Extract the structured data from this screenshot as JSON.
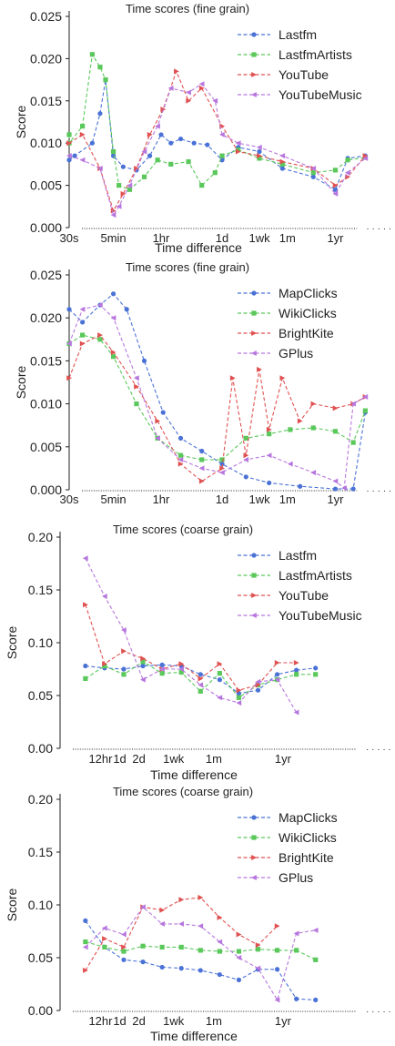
{
  "chart_data": [
    {
      "type": "line",
      "title": "Time scores (fine grain)",
      "xlabel": "Time difference",
      "ylabel": "Score",
      "ylim": [
        0,
        0.025
      ],
      "yticks": [
        "0.000",
        "0.005",
        "0.010",
        "0.015",
        "0.020",
        "0.025"
      ],
      "xscale": "log",
      "xticks": [
        {
          "x": 30,
          "label": "30s"
        },
        {
          "x": 300,
          "label": "5min"
        },
        {
          "x": 3600,
          "label": "1hr"
        },
        {
          "x": 86400,
          "label": "1d"
        },
        {
          "x": 604800,
          "label": "1wk"
        },
        {
          "x": 2592000,
          "label": "1m"
        },
        {
          "x": 31536000,
          "label": "1yr"
        }
      ],
      "xlim": [
        30,
        300000000
      ],
      "legend": "top-right",
      "series": [
        {
          "name": "Lastfm",
          "color": "#4a72d6",
          "marker": "circle",
          "x": [
            20,
            40,
            100,
            150,
            200,
            300,
            500,
            1000,
            2000,
            3600,
            6000,
            10000,
            20000,
            40000,
            86400,
            200000,
            600000,
            2000000,
            10000000,
            31536000,
            60000000,
            150000000
          ],
          "y": [
            0.008,
            0.0085,
            0.01,
            0.0135,
            0.0175,
            0.0085,
            0.0072,
            0.0068,
            0.0085,
            0.011,
            0.01,
            0.0105,
            0.01,
            0.0098,
            0.008,
            0.0095,
            0.009,
            0.007,
            0.006,
            0.0045,
            0.0082,
            0.0085
          ]
        },
        {
          "name": "LastfmArtists",
          "color": "#5ac85a",
          "marker": "square",
          "x": [
            20,
            30,
            60,
            100,
            150,
            200,
            300,
            400,
            700,
            1500,
            3000,
            6000,
            15000,
            30000,
            60000,
            86400,
            200000,
            600000,
            2000000,
            10000000,
            31536000,
            60000000,
            150000000
          ],
          "y": [
            0.011,
            0.01,
            0.012,
            0.0205,
            0.019,
            0.0175,
            0.009,
            0.005,
            0.0045,
            0.006,
            0.008,
            0.0075,
            0.0078,
            0.005,
            0.0065,
            0.0085,
            0.0092,
            0.0082,
            0.0075,
            0.0065,
            0.0068,
            0.008,
            0.0083
          ]
        },
        {
          "name": "YouTube",
          "color": "#e05050",
          "marker": "tri-right",
          "x": [
            20,
            60,
            150,
            300,
            500,
            1000,
            2000,
            4000,
            8000,
            15000,
            30000,
            86400,
            200000,
            600000,
            2000000,
            10000000,
            31536000,
            60000000,
            150000000
          ],
          "y": [
            0.01,
            0.011,
            0.007,
            0.002,
            0.004,
            0.007,
            0.011,
            0.014,
            0.0185,
            0.015,
            0.0165,
            0.012,
            0.009,
            0.0085,
            0.0078,
            0.007,
            0.005,
            0.006,
            0.0085
          ]
        },
        {
          "name": "YouTubeMusic",
          "color": "#b776de",
          "marker": "tri-left",
          "x": [
            20,
            60,
            150,
            300,
            400,
            700,
            1500,
            3000,
            6000,
            15000,
            30000,
            60000,
            86400,
            200000,
            600000,
            2000000,
            10000000,
            31536000,
            60000000,
            150000000
          ],
          "y": [
            0.0085,
            0.008,
            0.007,
            0.0015,
            0.0025,
            0.005,
            0.009,
            0.012,
            0.0165,
            0.016,
            0.017,
            0.015,
            0.011,
            0.01,
            0.0095,
            0.0085,
            0.007,
            0.004,
            0.0065,
            0.0082
          ]
        }
      ]
    },
    {
      "type": "line",
      "title": "Time scores (fine grain)",
      "xlabel": "",
      "ylabel": "Score",
      "ylim": [
        0,
        0.025
      ],
      "yticks": [
        "0.000",
        "0.005",
        "0.010",
        "0.015",
        "0.020",
        "0.025"
      ],
      "xscale": "log",
      "xticks": [
        {
          "x": 30,
          "label": "30s"
        },
        {
          "x": 300,
          "label": "5min"
        },
        {
          "x": 3600,
          "label": "1hr"
        },
        {
          "x": 86400,
          "label": "1d"
        },
        {
          "x": 604800,
          "label": "1wk"
        },
        {
          "x": 2592000,
          "label": "1m"
        },
        {
          "x": 31536000,
          "label": "1yr"
        }
      ],
      "xlim": [
        30,
        300000000
      ],
      "legend": "top-right",
      "series": [
        {
          "name": "MapClicks",
          "color": "#4a72d6",
          "marker": "circle",
          "x": [
            20,
            60,
            150,
            300,
            600,
            1500,
            4000,
            10000,
            30000,
            86400,
            300000,
            1000000,
            5000000,
            31536000,
            80000000,
            150000000
          ],
          "y": [
            0.021,
            0.0195,
            0.0215,
            0.0228,
            0.021,
            0.015,
            0.009,
            0.006,
            0.0045,
            0.003,
            0.0015,
            0.0008,
            0.0004,
            0.0001,
            0.0001,
            0.009
          ]
        },
        {
          "name": "WikiClicks",
          "color": "#5ac85a",
          "marker": "square",
          "x": [
            20,
            60,
            150,
            300,
            1000,
            3000,
            10000,
            30000,
            86400,
            300000,
            1000000,
            3000000,
            10000000,
            31536000,
            80000000,
            150000000
          ],
          "y": [
            0.017,
            0.018,
            0.0175,
            0.0155,
            0.01,
            0.006,
            0.004,
            0.0035,
            0.0035,
            0.006,
            0.0065,
            0.007,
            0.0072,
            0.0068,
            0.0055,
            0.0092
          ]
        },
        {
          "name": "BrightKite",
          "color": "#e05050",
          "marker": "tri-right",
          "x": [
            20,
            60,
            150,
            300,
            1000,
            3000,
            10000,
            30000,
            86400,
            150000,
            300000,
            600000,
            1000000,
            2000000,
            5000000,
            10000000,
            31536000,
            80000000,
            150000000
          ],
          "y": [
            0.013,
            0.017,
            0.018,
            0.016,
            0.012,
            0.008,
            0.003,
            0.001,
            0.0025,
            0.013,
            0.004,
            0.014,
            0.007,
            0.013,
            0.008,
            0.01,
            0.0095,
            0.01,
            0.0108
          ]
        },
        {
          "name": "GPlus",
          "color": "#b776de",
          "marker": "tri-left",
          "x": [
            20,
            60,
            150,
            300,
            1000,
            3000,
            10000,
            30000,
            86400,
            300000,
            1000000,
            3000000,
            10000000,
            31536000,
            50000000,
            80000000,
            150000000
          ],
          "y": [
            0.017,
            0.021,
            0.0215,
            0.02,
            0.013,
            0.006,
            0.0035,
            0.0025,
            0.002,
            0.0035,
            0.004,
            0.003,
            0.002,
            0.001,
            0.0002,
            0.01,
            0.0108
          ]
        }
      ]
    },
    {
      "type": "line",
      "title": "Time scores (coarse grain)",
      "xlabel": "Time difference",
      "ylabel": "Score",
      "ylim": [
        0,
        0.2
      ],
      "yticks": [
        "0.00",
        "0.05",
        "0.10",
        "0.15",
        "0.20"
      ],
      "xscale": "log",
      "xticks": [
        {
          "x": 43200,
          "label": "12hr"
        },
        {
          "x": 86400,
          "label": "1d"
        },
        {
          "x": 172800,
          "label": "2d"
        },
        {
          "x": 604800,
          "label": "1wk"
        },
        {
          "x": 2592000,
          "label": "1m"
        },
        {
          "x": 31536000,
          "label": "1yr"
        }
      ],
      "xlim": [
        10000,
        1000000000
      ],
      "legend": "top-right",
      "series": [
        {
          "name": "Lastfm",
          "color": "#4a72d6",
          "marker": "circle",
          "x": [
            25000,
            50000,
            100000,
            200000,
            400000,
            800000,
            1600000,
            3200000,
            6400000,
            12800000,
            25600000,
            51200000,
            102400000
          ],
          "y": [
            0.078,
            0.076,
            0.075,
            0.078,
            0.079,
            0.078,
            0.07,
            0.065,
            0.052,
            0.055,
            0.07,
            0.074,
            0.076
          ]
        },
        {
          "name": "LastfmArtists",
          "color": "#5ac85a",
          "marker": "square",
          "x": [
            25000,
            50000,
            100000,
            200000,
            400000,
            800000,
            1600000,
            3200000,
            6400000,
            12800000,
            25600000,
            51200000,
            102400000
          ],
          "y": [
            0.066,
            0.078,
            0.07,
            0.082,
            0.071,
            0.072,
            0.054,
            0.071,
            0.048,
            0.06,
            0.065,
            0.07,
            0.07
          ]
        },
        {
          "name": "YouTube",
          "color": "#e05050",
          "marker": "tri-right",
          "x": [
            25000,
            50000,
            100000,
            200000,
            400000,
            800000,
            1600000,
            3200000,
            6400000,
            12800000,
            25600000,
            51200000
          ],
          "y": [
            0.136,
            0.08,
            0.092,
            0.085,
            0.075,
            0.08,
            0.066,
            0.08,
            0.055,
            0.06,
            0.081,
            0.081
          ]
        },
        {
          "name": "YouTubeMusic",
          "color": "#b776de",
          "marker": "tri-left",
          "x": [
            25000,
            50000,
            100000,
            200000,
            400000,
            800000,
            1600000,
            3200000,
            6400000,
            12800000,
            25600000,
            51200000
          ],
          "y": [
            0.18,
            0.144,
            0.112,
            0.065,
            0.075,
            0.075,
            0.06,
            0.048,
            0.043,
            0.063,
            0.065,
            0.034
          ]
        }
      ]
    },
    {
      "type": "line",
      "title": "Time scores (coarse grain)",
      "xlabel": "Time difference",
      "ylabel": "Score",
      "ylim": [
        0,
        0.2
      ],
      "yticks": [
        "0.00",
        "0.05",
        "0.10",
        "0.15",
        "0.20"
      ],
      "xscale": "log",
      "xticks": [
        {
          "x": 43200,
          "label": "12hr"
        },
        {
          "x": 86400,
          "label": "1d"
        },
        {
          "x": 172800,
          "label": "2d"
        },
        {
          "x": 604800,
          "label": "1wk"
        },
        {
          "x": 2592000,
          "label": "1m"
        },
        {
          "x": 31536000,
          "label": "1yr"
        }
      ],
      "xlim": [
        10000,
        1000000000
      ],
      "legend": "top-right",
      "series": [
        {
          "name": "MapClicks",
          "color": "#4a72d6",
          "marker": "circle",
          "x": [
            25000,
            50000,
            100000,
            200000,
            400000,
            800000,
            1600000,
            3200000,
            6400000,
            12800000,
            25600000,
            51200000,
            102400000
          ],
          "y": [
            0.085,
            0.06,
            0.048,
            0.046,
            0.041,
            0.04,
            0.038,
            0.034,
            0.029,
            0.039,
            0.039,
            0.011,
            0.01
          ]
        },
        {
          "name": "WikiClicks",
          "color": "#5ac85a",
          "marker": "square",
          "x": [
            25000,
            50000,
            100000,
            200000,
            400000,
            800000,
            1600000,
            3200000,
            6400000,
            12800000,
            25600000,
            51200000,
            102400000
          ],
          "y": [
            0.065,
            0.06,
            0.056,
            0.061,
            0.06,
            0.06,
            0.057,
            0.056,
            0.056,
            0.058,
            0.057,
            0.057,
            0.048
          ]
        },
        {
          "name": "BrightKite",
          "color": "#e05050",
          "marker": "tri-right",
          "x": [
            25000,
            50000,
            100000,
            200000,
            400000,
            800000,
            1600000,
            3200000,
            6400000,
            12800000,
            25600000
          ],
          "y": [
            0.038,
            0.068,
            0.06,
            0.098,
            0.095,
            0.105,
            0.107,
            0.088,
            0.072,
            0.062,
            0.08
          ]
        },
        {
          "name": "GPlus",
          "color": "#b776de",
          "marker": "tri-left",
          "x": [
            25000,
            50000,
            100000,
            200000,
            400000,
            800000,
            1600000,
            3200000,
            6400000,
            12800000,
            25600000,
            51200000,
            102400000
          ],
          "y": [
            0.06,
            0.078,
            0.072,
            0.098,
            0.082,
            0.082,
            0.08,
            0.065,
            0.05,
            0.04,
            0.01,
            0.073,
            0.076
          ]
        }
      ]
    }
  ]
}
